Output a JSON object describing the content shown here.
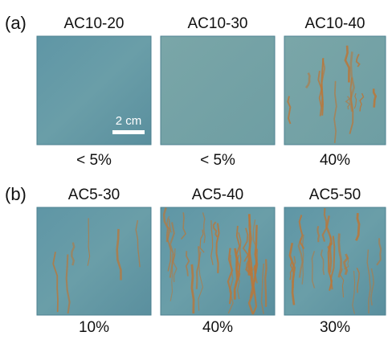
{
  "panels": [
    {
      "label": "(a)",
      "samples": [
        {
          "name": "AC10-20",
          "result": "< 5%"
        },
        {
          "name": "AC10-30",
          "result": "< 5%"
        },
        {
          "name": "AC10-40",
          "result": "40%"
        }
      ]
    },
    {
      "label": "(b)",
      "samples": [
        {
          "name": "AC5-30",
          "result": "10%"
        },
        {
          "name": "AC5-40",
          "result": "40%"
        },
        {
          "name": "AC5-50",
          "result": "30%"
        }
      ]
    }
  ],
  "scale_bar": "2 cm"
}
